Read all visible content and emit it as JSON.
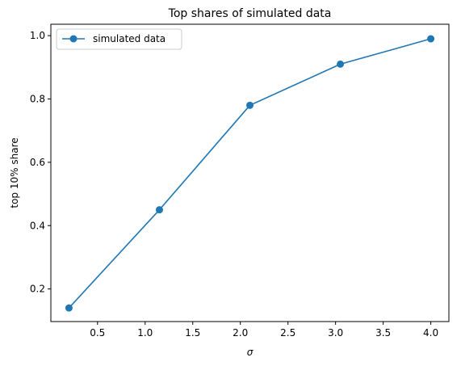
{
  "chart_data": {
    "type": "line",
    "title": "Top shares of simulated data",
    "xlabel": "σ",
    "ylabel": "top 10% share",
    "xlim": [
      0.01,
      4.19
    ],
    "ylim": [
      0.097,
      1.036
    ],
    "xticks": [
      0.5,
      1.0,
      1.5,
      2.0,
      2.5,
      3.0,
      3.5,
      4.0
    ],
    "xtick_labels": [
      "0.5",
      "1.0",
      "1.5",
      "2.0",
      "2.5",
      "3.0",
      "3.5",
      "4.0"
    ],
    "yticks": [
      0.2,
      0.4,
      0.6,
      0.8,
      1.0
    ],
    "ytick_labels": [
      "0.2",
      "0.4",
      "0.6",
      "0.8",
      "1.0"
    ],
    "grid": false,
    "legend_position": "top-left",
    "series": [
      {
        "name": "simulated data",
        "color": "#1f77b4",
        "marker": "circle",
        "x": [
          0.2,
          1.15,
          2.1,
          3.05,
          4.0
        ],
        "y": [
          0.14,
          0.45,
          0.78,
          0.91,
          0.99
        ]
      }
    ]
  }
}
